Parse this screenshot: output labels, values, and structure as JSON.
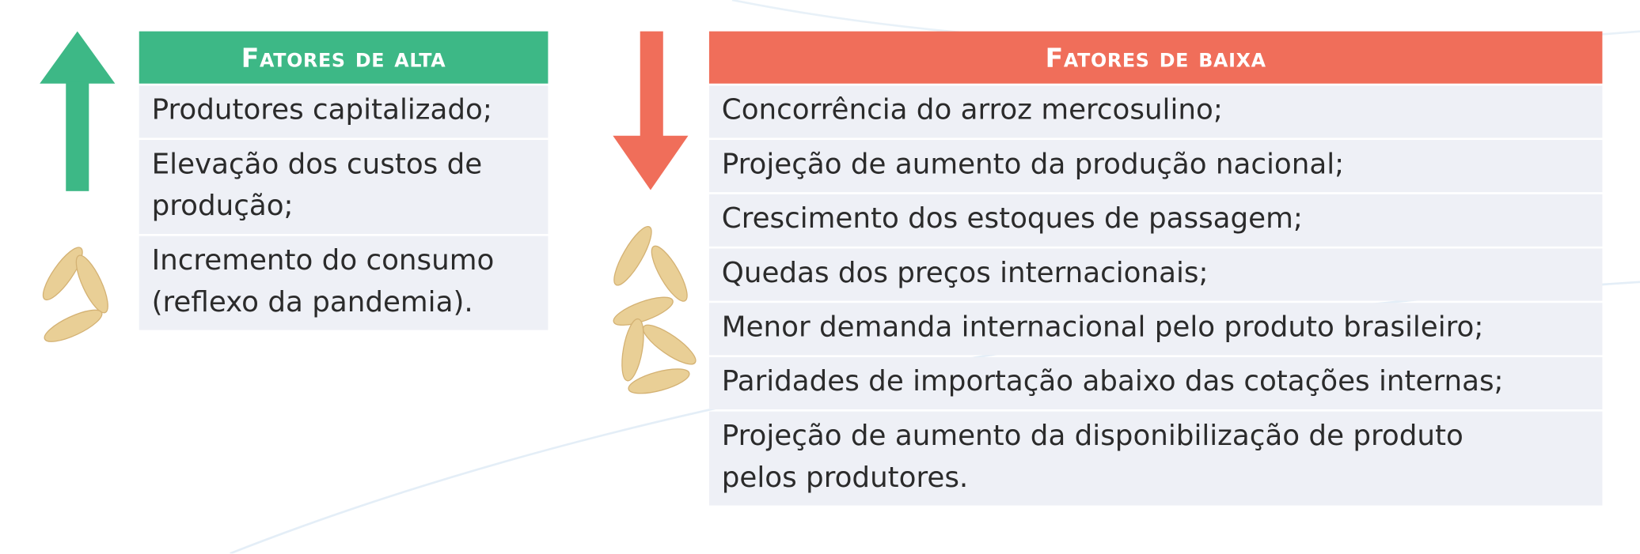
{
  "left": {
    "header": "Fatores de alta",
    "rows": [
      [
        "Produtores capitalizado;"
      ],
      [
        "Elevação dos custos de",
        "produção;"
      ],
      [
        "Incremento do consumo",
        "(reflexo da pandemia)."
      ]
    ]
  },
  "right": {
    "header": "Fatores de baixa",
    "rows": [
      [
        "Concorrência do arroz mercosulino;"
      ],
      [
        "Projeção de aumento da produção nacional;"
      ],
      [
        "Crescimento dos estoques de passagem;"
      ],
      [
        "Quedas dos preços internacionais;"
      ],
      [
        "Menor demanda internacional pelo produto brasileiro;"
      ],
      [
        "Paridades de importação abaixo das cotações internas;"
      ],
      [
        "Projeção de aumento da disponibilização de produto",
        "pelos produtores."
      ]
    ]
  }
}
